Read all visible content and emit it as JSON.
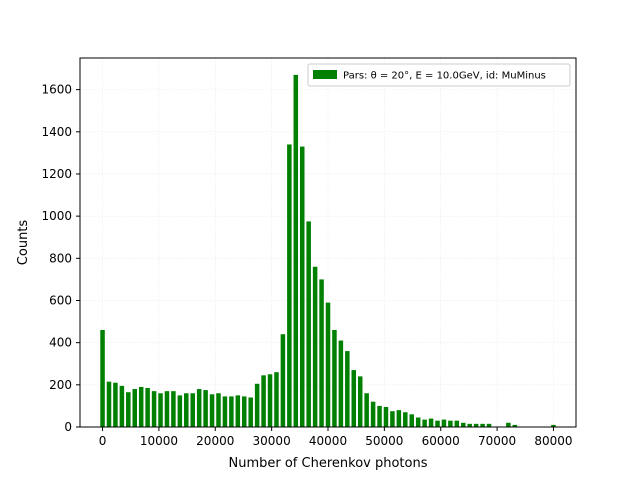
{
  "chart_data": {
    "type": "bar",
    "title": "",
    "xlabel": "Number of Cherenkov photons",
    "ylabel": "Counts",
    "xlim": [
      -4000,
      84000
    ],
    "ylim": [
      0,
      1750
    ],
    "bin_width": 800,
    "xticks": [
      0,
      10000,
      20000,
      30000,
      40000,
      50000,
      60000,
      70000,
      80000
    ],
    "yticks": [
      0,
      200,
      400,
      600,
      800,
      1000,
      1200,
      1400,
      1600
    ],
    "grid": true,
    "bar_color": "#008000",
    "legend": {
      "placement": "top-right",
      "label": "Pars: θ = 20°, E = 10.0GeV, id: MuMinus"
    },
    "series": [
      {
        "name": "Pars: θ = 20°, E = 10.0GeV, id: MuMinus",
        "x": [
          0,
          1143,
          2286,
          3429,
          4571,
          5714,
          6857,
          8000,
          9143,
          10286,
          11429,
          12571,
          13714,
          14857,
          16000,
          17143,
          18286,
          19429,
          20571,
          21714,
          22857,
          24000,
          25143,
          26286,
          27429,
          28571,
          29714,
          30857,
          32000,
          33143,
          34286,
          35429,
          36571,
          37714,
          38857,
          40000,
          41143,
          42286,
          43429,
          44571,
          45714,
          46857,
          48000,
          49143,
          50286,
          51429,
          52571,
          53714,
          54857,
          56000,
          57143,
          58286,
          59429,
          60571,
          61714,
          62857,
          64000,
          65143,
          66286,
          67429,
          68571,
          72000,
          73143,
          80000
        ],
        "values": [
          460,
          215,
          210,
          195,
          165,
          180,
          190,
          185,
          170,
          160,
          170,
          170,
          150,
          160,
          160,
          180,
          175,
          155,
          160,
          145,
          145,
          150,
          145,
          140,
          205,
          245,
          250,
          260,
          440,
          1340,
          1670,
          1330,
          975,
          760,
          700,
          590,
          460,
          410,
          360,
          270,
          240,
          160,
          120,
          100,
          95,
          75,
          80,
          70,
          60,
          45,
          35,
          40,
          30,
          35,
          30,
          30,
          20,
          15,
          15,
          15,
          15,
          20,
          10,
          10
        ]
      }
    ]
  }
}
